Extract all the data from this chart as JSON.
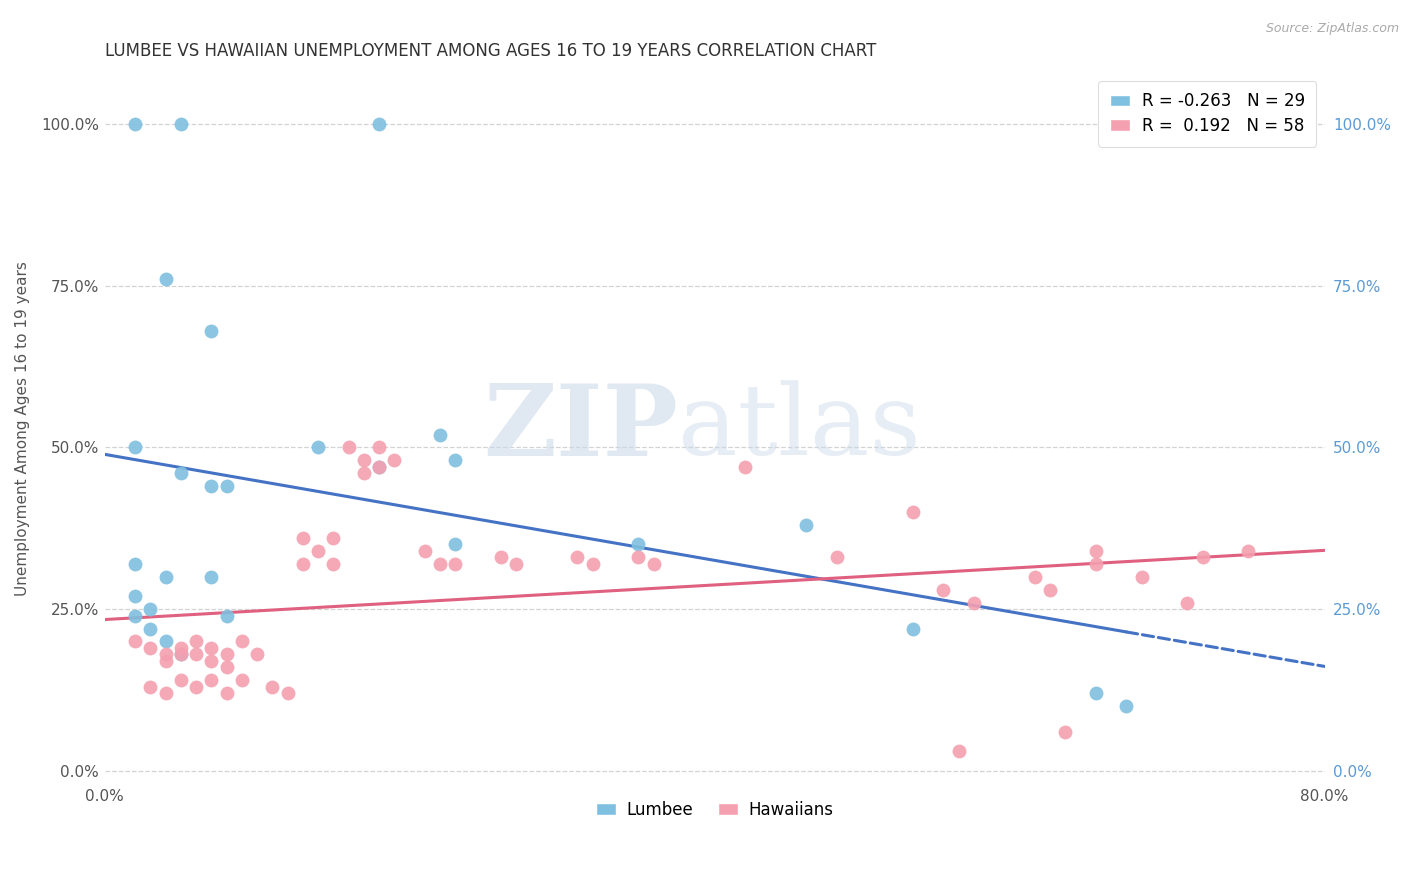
{
  "title": "LUMBEE VS HAWAIIAN UNEMPLOYMENT AMONG AGES 16 TO 19 YEARS CORRELATION CHART",
  "source": "Source: ZipAtlas.com",
  "ylabel": "Unemployment Among Ages 16 to 19 years",
  "ytick_labels": [
    "0.0%",
    "25.0%",
    "50.0%",
    "75.0%",
    "100.0%"
  ],
  "ytick_values": [
    0.0,
    0.25,
    0.5,
    0.75,
    1.0
  ],
  "xlim": [
    0.0,
    0.8
  ],
  "ylim": [
    -0.02,
    1.08
  ],
  "lumbee_color": "#7fbfdf",
  "hawaiian_color": "#f4a0b0",
  "lumbee_line_color": "#4472c4",
  "hawaiian_line_color": "#e06080",
  "lumbee_R": -0.263,
  "lumbee_N": 29,
  "hawaiian_R": 0.192,
  "hawaiian_N": 58,
  "lumbee_points": [
    [
      0.02,
      1.0
    ],
    [
      0.05,
      1.0
    ],
    [
      0.18,
      1.0
    ],
    [
      0.04,
      0.76
    ],
    [
      0.07,
      0.68
    ],
    [
      0.02,
      0.5
    ],
    [
      0.05,
      0.46
    ],
    [
      0.07,
      0.44
    ],
    [
      0.02,
      0.32
    ],
    [
      0.04,
      0.3
    ],
    [
      0.07,
      0.3
    ],
    [
      0.02,
      0.27
    ],
    [
      0.03,
      0.25
    ],
    [
      0.08,
      0.24
    ],
    [
      0.02,
      0.24
    ],
    [
      0.03,
      0.22
    ],
    [
      0.04,
      0.2
    ],
    [
      0.05,
      0.18
    ],
    [
      0.08,
      0.44
    ],
    [
      0.14,
      0.5
    ],
    [
      0.18,
      0.47
    ],
    [
      0.22,
      0.52
    ],
    [
      0.23,
      0.48
    ],
    [
      0.23,
      0.35
    ],
    [
      0.35,
      0.35
    ],
    [
      0.46,
      0.38
    ],
    [
      0.53,
      0.22
    ],
    [
      0.65,
      0.12
    ],
    [
      0.67,
      0.1
    ]
  ],
  "hawaiian_points": [
    [
      0.02,
      0.2
    ],
    [
      0.03,
      0.19
    ],
    [
      0.04,
      0.18
    ],
    [
      0.04,
      0.17
    ],
    [
      0.05,
      0.19
    ],
    [
      0.05,
      0.18
    ],
    [
      0.06,
      0.2
    ],
    [
      0.06,
      0.18
    ],
    [
      0.07,
      0.19
    ],
    [
      0.07,
      0.17
    ],
    [
      0.08,
      0.18
    ],
    [
      0.08,
      0.16
    ],
    [
      0.09,
      0.2
    ],
    [
      0.1,
      0.18
    ],
    [
      0.13,
      0.36
    ],
    [
      0.13,
      0.32
    ],
    [
      0.14,
      0.34
    ],
    [
      0.15,
      0.36
    ],
    [
      0.15,
      0.32
    ],
    [
      0.16,
      0.5
    ],
    [
      0.17,
      0.48
    ],
    [
      0.17,
      0.46
    ],
    [
      0.18,
      0.5
    ],
    [
      0.18,
      0.47
    ],
    [
      0.19,
      0.48
    ],
    [
      0.21,
      0.34
    ],
    [
      0.22,
      0.32
    ],
    [
      0.23,
      0.32
    ],
    [
      0.26,
      0.33
    ],
    [
      0.27,
      0.32
    ],
    [
      0.31,
      0.33
    ],
    [
      0.32,
      0.32
    ],
    [
      0.35,
      0.33
    ],
    [
      0.36,
      0.32
    ],
    [
      0.42,
      0.47
    ],
    [
      0.48,
      0.33
    ],
    [
      0.53,
      0.4
    ],
    [
      0.55,
      0.28
    ],
    [
      0.57,
      0.26
    ],
    [
      0.61,
      0.3
    ],
    [
      0.62,
      0.28
    ],
    [
      0.63,
      0.06
    ],
    [
      0.65,
      0.34
    ],
    [
      0.65,
      0.32
    ],
    [
      0.68,
      0.3
    ],
    [
      0.71,
      0.26
    ],
    [
      0.72,
      0.33
    ],
    [
      0.75,
      0.34
    ],
    [
      0.56,
      0.03
    ],
    [
      0.03,
      0.13
    ],
    [
      0.04,
      0.12
    ],
    [
      0.05,
      0.14
    ],
    [
      0.06,
      0.13
    ],
    [
      0.07,
      0.14
    ],
    [
      0.08,
      0.12
    ],
    [
      0.09,
      0.14
    ],
    [
      0.11,
      0.13
    ],
    [
      0.12,
      0.12
    ]
  ],
  "grid_color": "#c8c8c8",
  "background_color": "#ffffff",
  "right_tick_color": "#5b9bd5",
  "legend_lumbee_label": "Lumbee",
  "legend_hawaiian_label": "Hawaiians"
}
